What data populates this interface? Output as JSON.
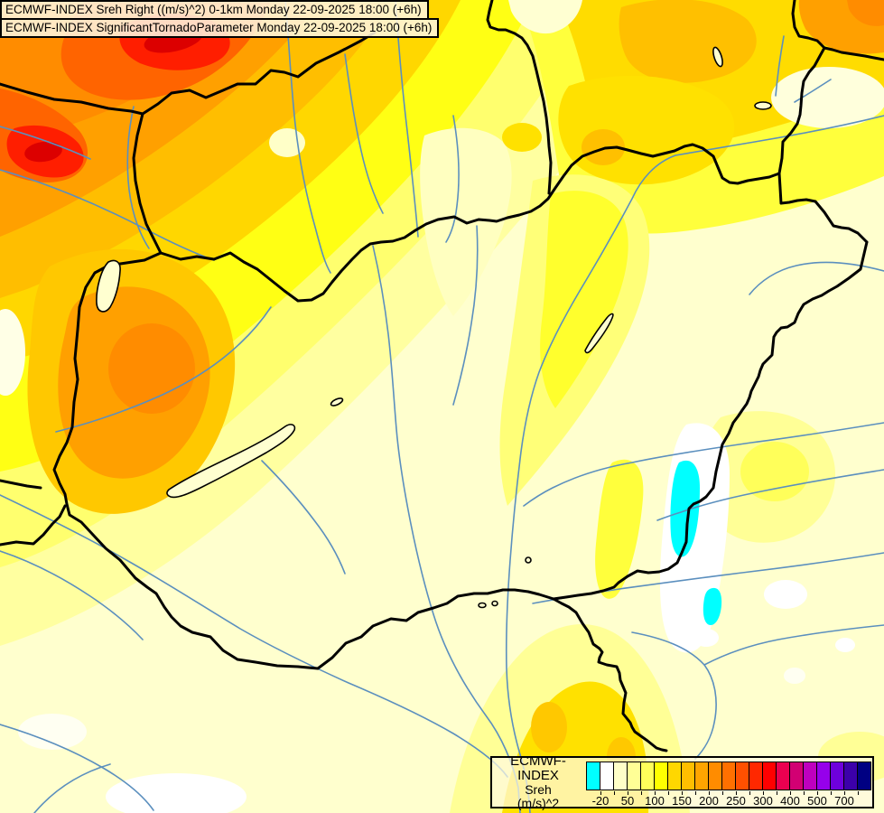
{
  "title": {
    "line1": "ECMWF-INDEX Sreh Right ((m/s)^2) 0-1km Monday 22-09-2025 18:00 (+6h)",
    "line2": "ECMWF-INDEX SignificantTornadoParameter Monday 22-09-2025 18:00 (+6h)"
  },
  "legend": {
    "product": "ECMWF-INDEX",
    "parameter": "Sreh",
    "units": "(m/s)^2",
    "cell_colors": [
      "#00FFFF",
      "#FFFFFF",
      "#FFFFC8",
      "#FFFF96",
      "#FFFF5A",
      "#FFFF00",
      "#FFD700",
      "#FFBE00",
      "#FFA500",
      "#FF8C00",
      "#FF7000",
      "#FF5000",
      "#FF2800",
      "#FF0000",
      "#EB0050",
      "#D20073",
      "#BE00BE",
      "#9600EB",
      "#6E00DC",
      "#3C00AA",
      "#000082"
    ],
    "tick_labels": [
      {
        "label": "-20",
        "boundary": 1
      },
      {
        "label": "50",
        "boundary": 3
      },
      {
        "label": "100",
        "boundary": 5
      },
      {
        "label": "150",
        "boundary": 7
      },
      {
        "label": "200",
        "boundary": 9
      },
      {
        "label": "250",
        "boundary": 11
      },
      {
        "label": "300",
        "boundary": 13
      },
      {
        "label": "400",
        "boundary": 15
      },
      {
        "label": "500",
        "boundary": 17
      },
      {
        "label": "700",
        "boundary": 19
      }
    ]
  },
  "map": {
    "background_color": "#FFFFCE",
    "border_color": "#000000",
    "river_color": "#5B8FBE",
    "lake_outline_color": "#000000",
    "min_color": "#00FFFF",
    "max_color": "#000082"
  }
}
